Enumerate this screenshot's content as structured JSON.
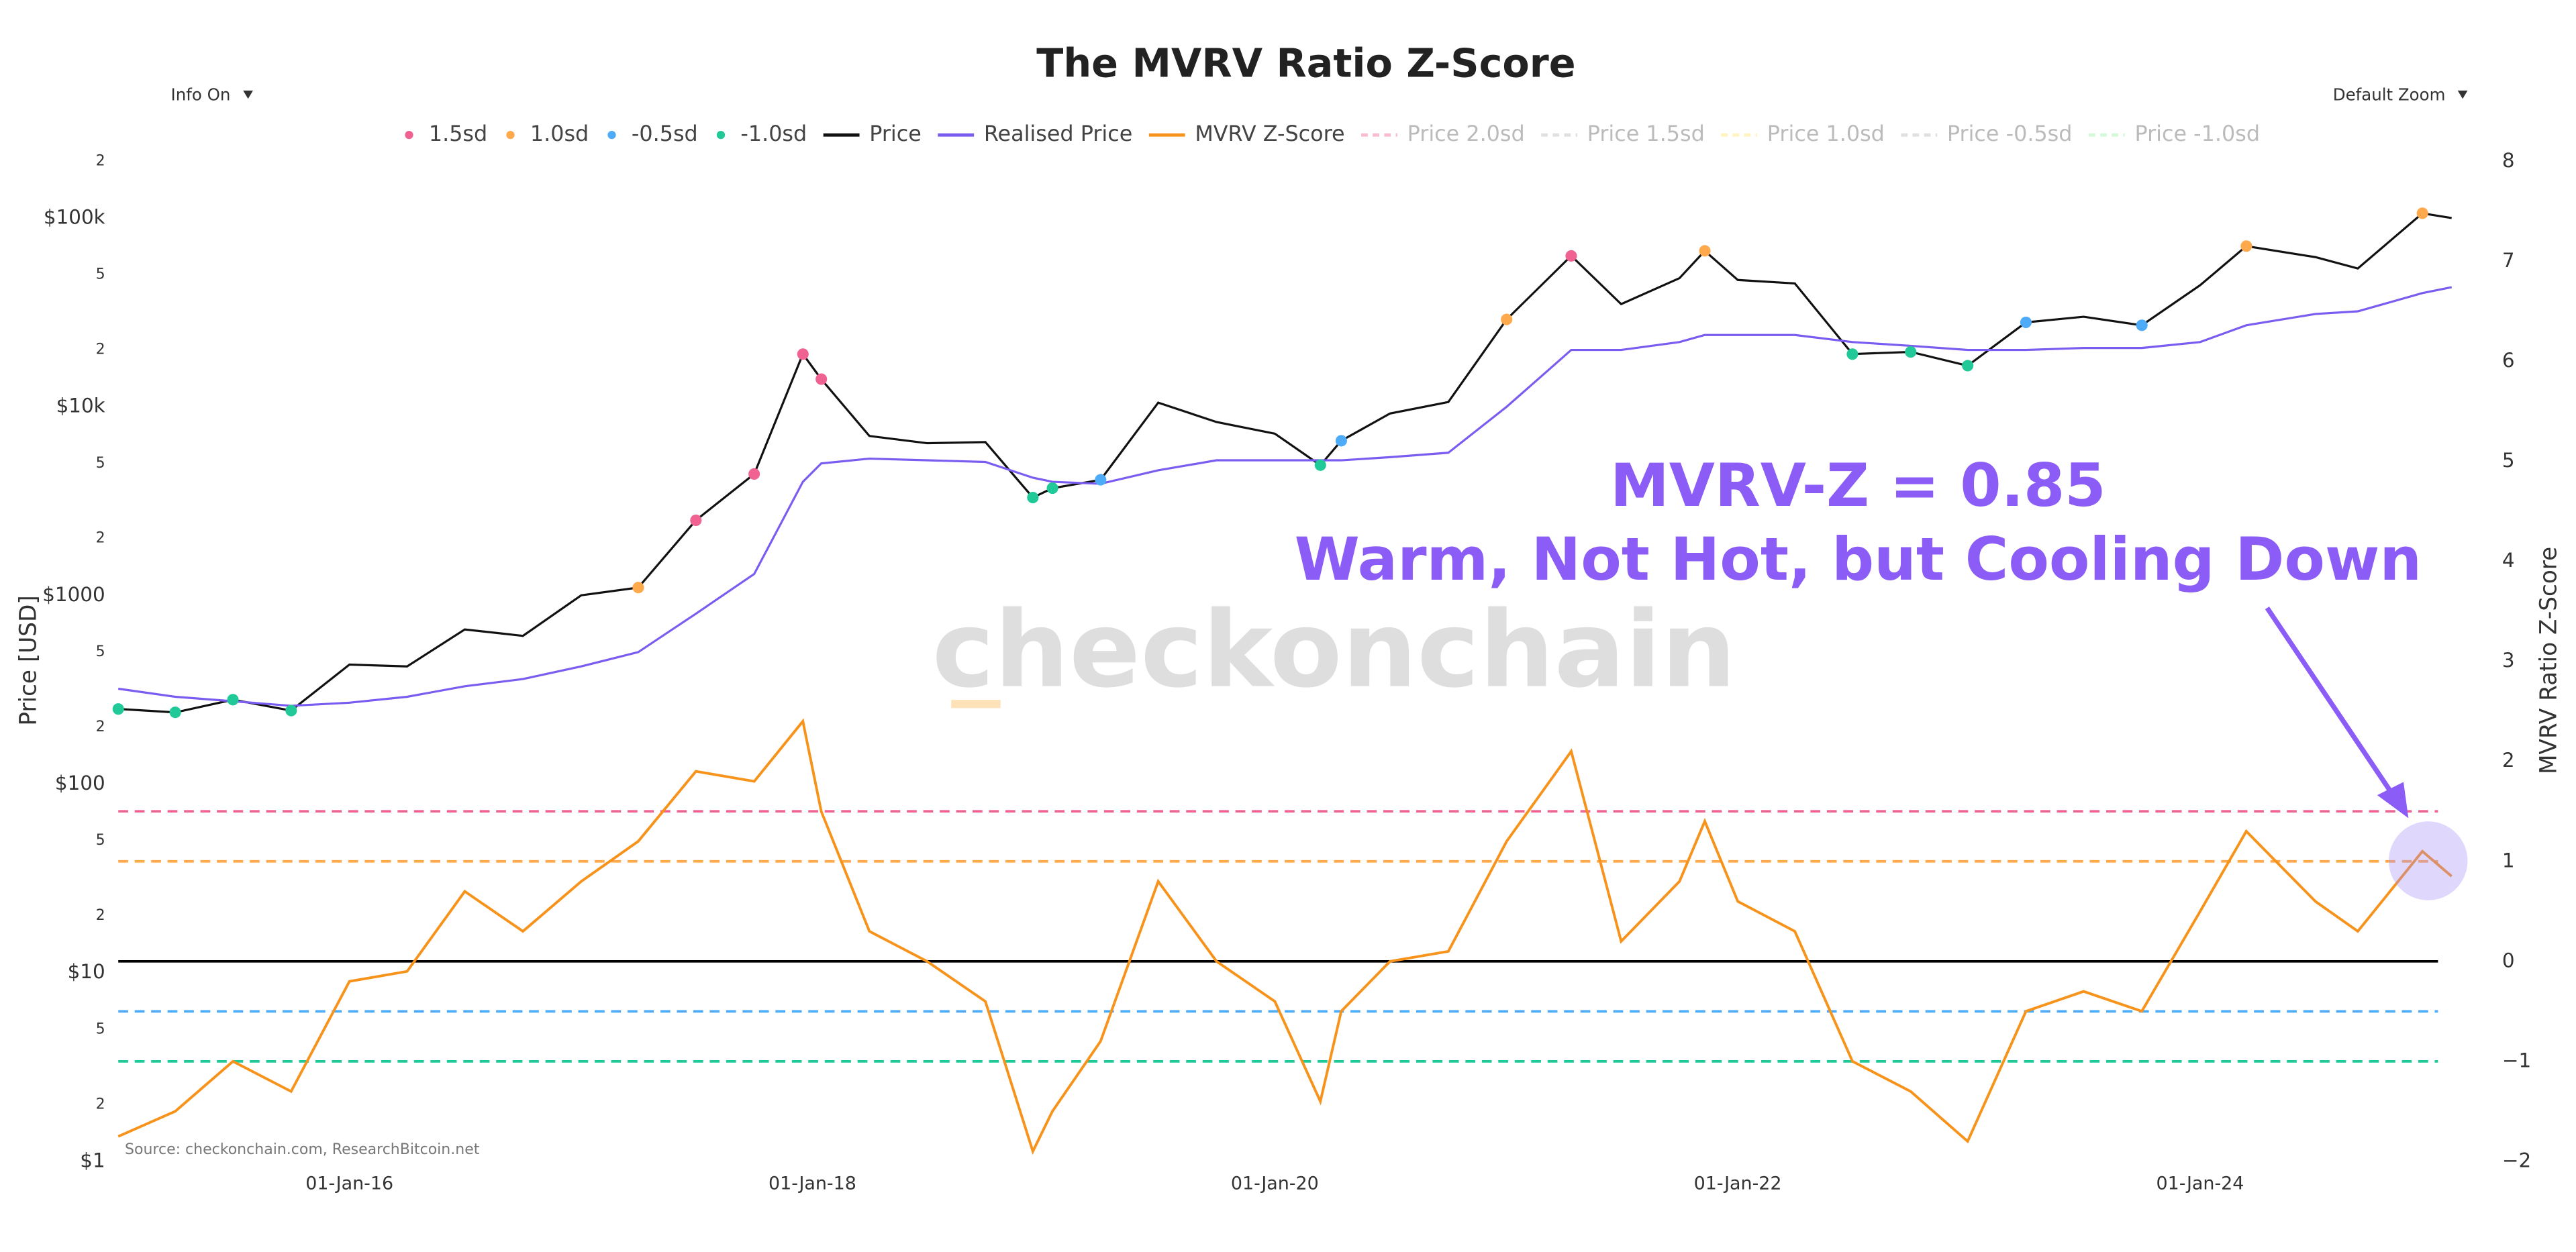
{
  "chart_data": {
    "type": "line",
    "title": "The MVRV Ratio Z-Score",
    "buttons": [
      "Info On",
      "Default Zoom"
    ],
    "ylabel": "Price [USD]",
    "y2label": "MVRV Ratio Z-Score",
    "watermark": "checkonchain",
    "source": "Source: checkonchain.com, ResearchBitcoin.net",
    "annotations": [
      "MVRV-Z = 0.85",
      "Warm, Not Hot, but Cooling Down"
    ],
    "log_y": true,
    "xlim": [
      "2015-01-01",
      "2025-04-01"
    ],
    "xticks": [
      {
        "value": "2016-01-01",
        "label": "01-Jan-16"
      },
      {
        "value": "2018-01-01",
        "label": "01-Jan-18"
      },
      {
        "value": "2020-01-01",
        "label": "01-Jan-20"
      },
      {
        "value": "2022-01-01",
        "label": "01-Jan-22"
      },
      {
        "value": "2024-01-01",
        "label": "01-Jan-24"
      }
    ],
    "ylim": [
      1,
      200000
    ],
    "yticks": [
      {
        "value": 1,
        "label": "$1"
      },
      2,
      5,
      {
        "value": 10,
        "label": "$10"
      },
      {
        "value": 20,
        "label": "2"
      },
      {
        "value": 50,
        "label": "5"
      },
      {
        "value": 100,
        "label": "$100"
      },
      {
        "value": 200,
        "label": "2"
      },
      {
        "value": 500,
        "label": "5"
      },
      {
        "value": 1000,
        "label": "$1000"
      },
      {
        "value": 2000,
        "label": "2"
      },
      {
        "value": 5000,
        "label": "5"
      },
      {
        "value": 10000,
        "label": "$10k"
      },
      {
        "value": 20000,
        "label": "2"
      },
      {
        "value": 50000,
        "label": "5"
      },
      {
        "value": 100000,
        "label": "$100k"
      },
      {
        "value": 200000,
        "label": "2"
      }
    ],
    "y2lim": [
      -2,
      8
    ],
    "y2ticks": [
      {
        "value": -2,
        "label": "−2"
      },
      {
        "value": -1,
        "label": "−1"
      },
      0,
      1,
      2,
      3,
      4,
      5,
      6,
      7,
      8
    ],
    "bands": [
      {
        "name": "1.5sd",
        "color": "#f06292",
        "value": 1.5
      },
      {
        "name": "1.0sd",
        "color": "#ffa94d",
        "value": 1.0
      },
      {
        "name": "-0.5sd",
        "color": "#4dabf7",
        "value": -0.5
      },
      {
        "name": "-1.0sd",
        "color": "#20c997",
        "value": -1.0
      }
    ],
    "zero_line_color": "#000000",
    "x": [
      "2015-01-01",
      "2015-04-01",
      "2015-07-01",
      "2015-10-01",
      "2016-01-01",
      "2016-04-01",
      "2016-07-01",
      "2016-10-01",
      "2017-01-01",
      "2017-04-01",
      "2017-07-01",
      "2017-10-01",
      "2017-12-17",
      "2018-01-15",
      "2018-04-01",
      "2018-07-01",
      "2018-10-01",
      "2018-12-15",
      "2019-01-15",
      "2019-04-01",
      "2019-07-01",
      "2019-10-01",
      "2020-01-01",
      "2020-03-13",
      "2020-04-15",
      "2020-07-01",
      "2020-10-01",
      "2021-01-01",
      "2021-04-13",
      "2021-07-01",
      "2021-10-01",
      "2021-11-10",
      "2022-01-01",
      "2022-04-01",
      "2022-07-01",
      "2022-10-01",
      "2022-12-30",
      "2023-04-01",
      "2023-07-01",
      "2023-10-01",
      "2024-01-01",
      "2024-03-14",
      "2024-07-01",
      "2024-09-06",
      "2024-12-17",
      "2025-02-01"
    ],
    "series": [
      {
        "name": "Price",
        "color": "#111111",
        "axis": "y",
        "values": [
          250,
          240,
          280,
          245,
          430,
          420,
          660,
          610,
          1000,
          1100,
          2500,
          4400,
          19000,
          14000,
          7000,
          6400,
          6500,
          3300,
          3700,
          4100,
          10500,
          8300,
          7200,
          4900,
          6600,
          9200,
          10600,
          29000,
          63000,
          35000,
          48000,
          67000,
          47000,
          45000,
          19000,
          19500,
          16500,
          28000,
          30000,
          27000,
          44000,
          71000,
          62000,
          54000,
          106000,
          100000
        ]
      },
      {
        "name": "Realised Price",
        "color": "#7b5cf0",
        "axis": "y",
        "values": [
          320,
          290,
          275,
          260,
          270,
          290,
          330,
          360,
          420,
          500,
          800,
          1300,
          4000,
          5000,
          5300,
          5200,
          5100,
          4200,
          4000,
          3900,
          4600,
          5200,
          5200,
          5200,
          5200,
          5400,
          5700,
          10000,
          20000,
          20000,
          22000,
          24000,
          24000,
          24000,
          22000,
          21000,
          20000,
          20000,
          20500,
          20500,
          22000,
          27000,
          31000,
          32000,
          40000,
          43000
        ]
      },
      {
        "name": "MVRV Z-Score",
        "color": "#f7931a",
        "axis": "y2",
        "values": [
          -1.75,
          -1.5,
          -1.0,
          -1.3,
          -0.2,
          -0.1,
          0.7,
          0.3,
          0.8,
          1.2,
          1.9,
          1.8,
          2.4,
          1.5,
          0.3,
          0.0,
          -0.4,
          -1.9,
          -1.5,
          -0.8,
          0.8,
          0.0,
          -0.4,
          -1.4,
          -0.5,
          0.0,
          0.1,
          1.2,
          2.1,
          0.2,
          0.8,
          1.4,
          0.6,
          0.3,
          -1.0,
          -1.3,
          -1.8,
          -0.5,
          -0.3,
          -0.5,
          0.5,
          1.3,
          0.6,
          0.3,
          1.1,
          0.85
        ]
      }
    ],
    "hidden_series": [
      {
        "name": "Price 2.0sd",
        "color": "#f8bbd0"
      },
      {
        "name": "Price 1.5sd",
        "color": "#e0e0e0"
      },
      {
        "name": "Price 1.0sd",
        "color": "#fff3bf"
      },
      {
        "name": "Price -0.5sd",
        "color": "#e0e0e0"
      },
      {
        "name": "Price -1.0sd",
        "color": "#d3f9d8"
      }
    ]
  }
}
